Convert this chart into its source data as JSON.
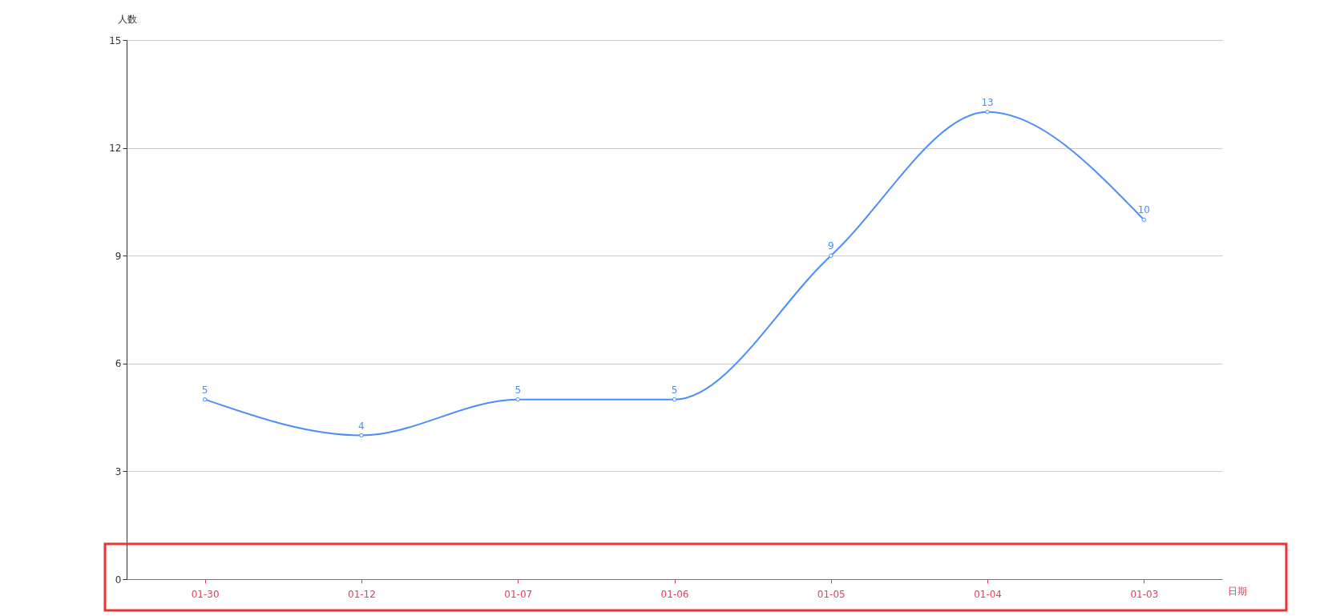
{
  "chart_data": {
    "type": "line",
    "xlabel": "日期",
    "ylabel": "人数",
    "categories": [
      "01-30",
      "01-12",
      "01-07",
      "01-06",
      "01-05",
      "01-04",
      "01-03"
    ],
    "series": [
      {
        "color": "#4a8ef7",
        "values": [
          5,
          4,
          5,
          5,
          9,
          13,
          10
        ]
      }
    ],
    "ylim": [
      0,
      15
    ],
    "yticks": [
      0,
      3,
      6,
      9,
      12,
      15
    ],
    "grid": "y",
    "marker": "circle",
    "data_labels": true
  }
}
